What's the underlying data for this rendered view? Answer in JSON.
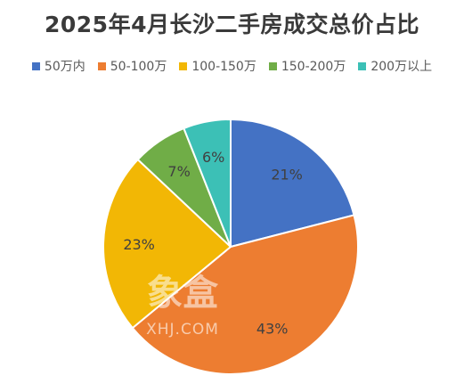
{
  "chart_data": {
    "type": "pie",
    "title": "2025年4月长沙二手房成交总价占比",
    "legend_position": "top",
    "categories": [
      "50万内",
      "50-100万",
      "100-150万",
      "150-200万",
      "200万以上"
    ],
    "values": [
      21,
      43,
      23,
      7,
      6
    ],
    "value_labels": [
      "21%",
      "43%",
      "23%",
      "7%",
      "6%"
    ],
    "colors": [
      "#4472C4",
      "#ED7D31",
      "#F2B705",
      "#70AD47",
      "#3CC0B6"
    ]
  },
  "watermark": {
    "main": "象盒",
    "sub": "XHJ.COM"
  }
}
